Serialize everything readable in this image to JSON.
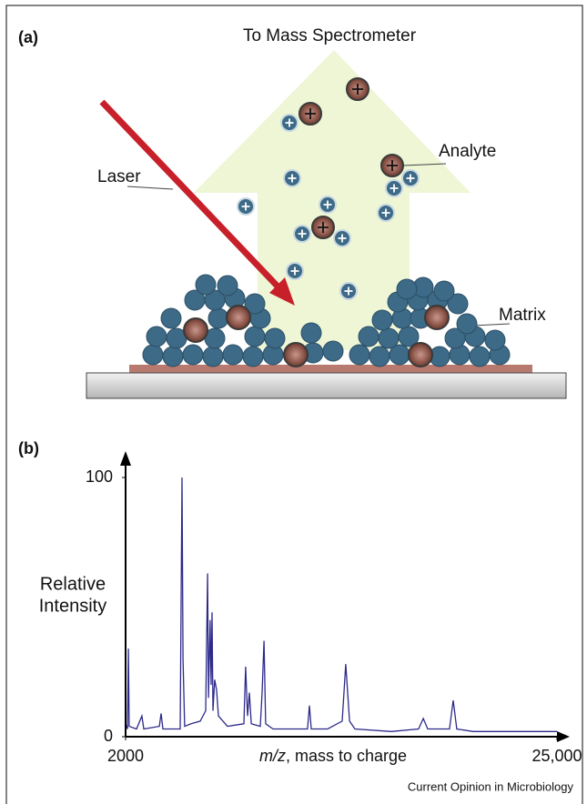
{
  "panel_a": {
    "label": "(a)",
    "title": "To Mass Spectrometer",
    "laser": "Laser",
    "analyte": "Analyte",
    "matrix": "Matrix"
  },
  "chart_data": {
    "type": "line",
    "panel_label": "(b)",
    "ylabel_lines": [
      "Relative",
      "Intensity"
    ],
    "xlabel_variable": "m/z",
    "xlabel": ", mass to charge",
    "xlim": [
      2000,
      25000
    ],
    "xticks": [
      2000,
      {
        "value": 25000,
        "label": "25,000"
      }
    ],
    "ylim": [
      0,
      100
    ],
    "yticks": [
      0,
      100
    ],
    "color": "#2d2a8a",
    "x": [
      2000,
      2100,
      2150,
      2190,
      2580,
      2870,
      2970,
      3800,
      3890,
      3990,
      4910,
      5010,
      5060,
      5150,
      5490,
      5980,
      6270,
      6370,
      6420,
      6510,
      6560,
      6610,
      6660,
      6750,
      6850,
      6950,
      7430,
      8310,
      8400,
      8500,
      8600,
      8700,
      9180,
      9280,
      9380,
      9470,
      9860,
      11700,
      11800,
      11900,
      12770,
      13550,
      13740,
      13940,
      14230,
      16170,
      17620,
      17870,
      18110,
      19270,
      19470,
      19660,
      20530,
      25000
    ],
    "values": [
      5,
      3,
      34,
      4,
      3,
      8,
      3,
      4,
      9,
      3,
      3,
      100,
      30,
      4,
      5,
      6,
      10,
      63,
      15,
      45,
      20,
      48,
      10,
      22,
      18,
      8,
      4,
      5,
      27,
      8,
      17,
      5,
      4,
      17,
      37,
      5,
      3,
      3,
      12,
      3,
      3,
      6,
      28,
      6,
      3,
      2,
      3,
      7,
      3,
      3,
      14,
      3,
      2,
      2
    ]
  },
  "footer": "Current Opinion in Microbiology"
}
